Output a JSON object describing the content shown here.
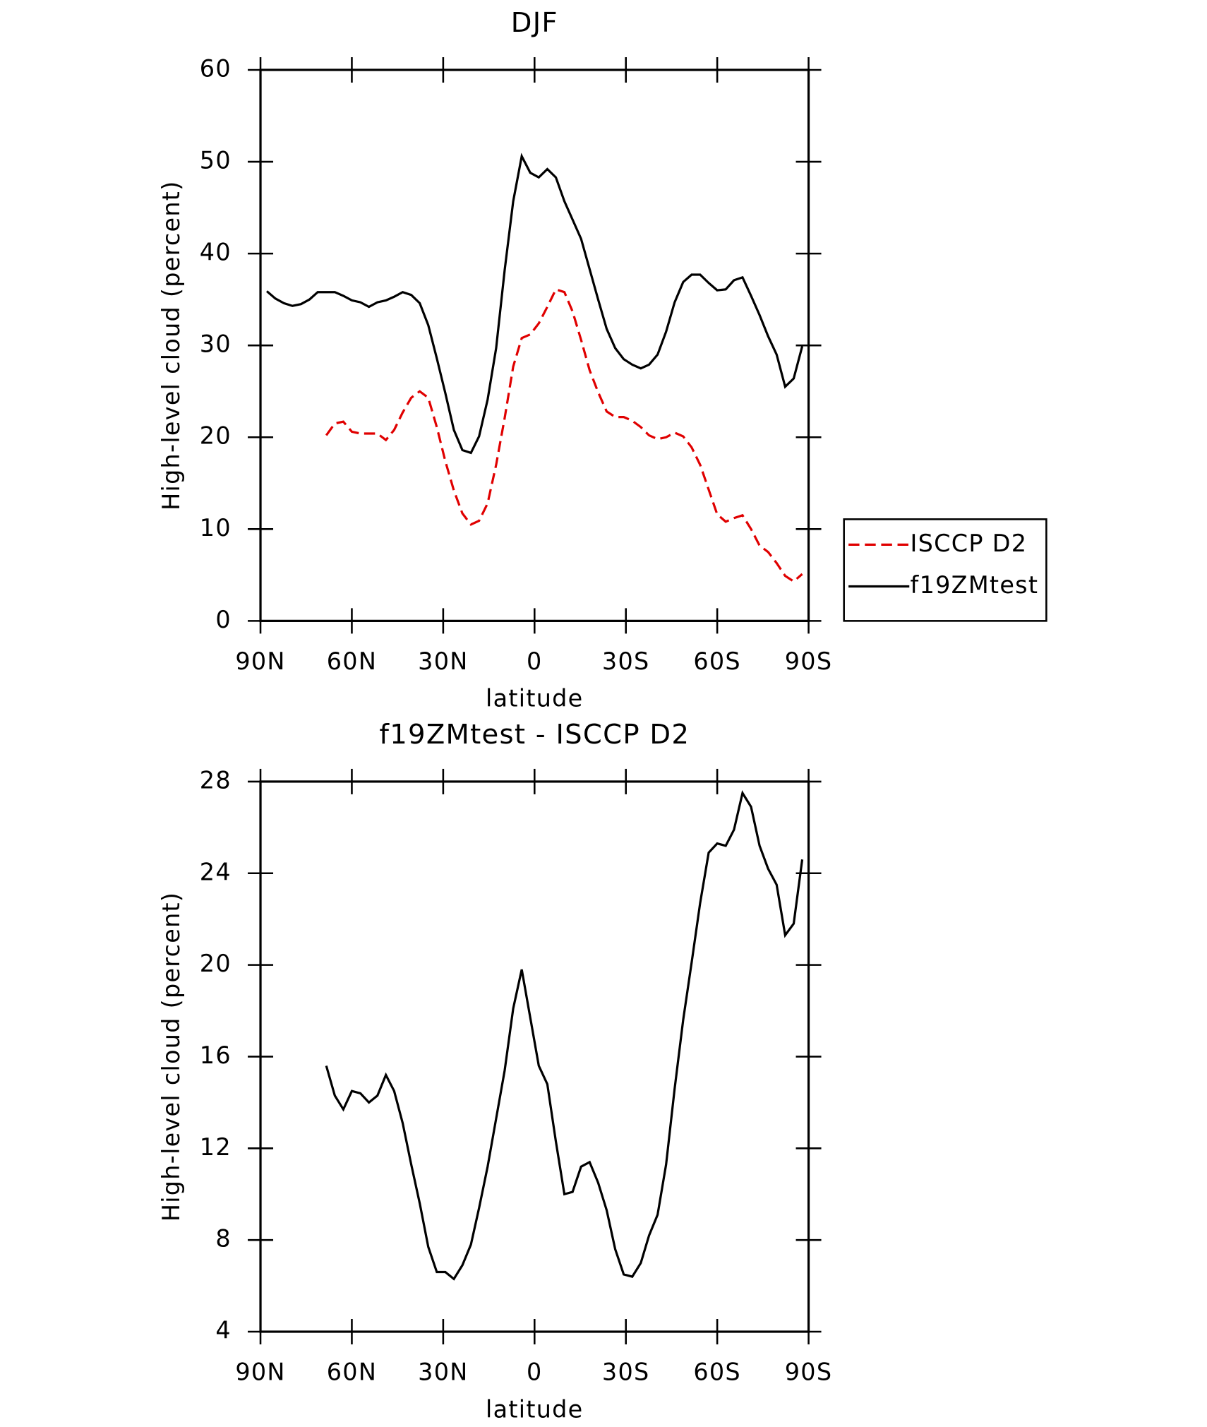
{
  "chart_data": [
    {
      "type": "line",
      "title": "DJF",
      "xlabel": "latitude",
      "ylabel": "High-level cloud (percent)",
      "x": [
        87.9,
        85.1,
        82.3,
        79.5,
        76.7,
        73.9,
        71.2,
        68.4,
        65.6,
        62.8,
        60.0,
        57.2,
        54.4,
        51.6,
        48.8,
        46.1,
        43.3,
        40.5,
        37.7,
        34.9,
        32.1,
        29.3,
        26.5,
        23.7,
        20.9,
        18.2,
        15.4,
        12.6,
        9.8,
        7.0,
        4.2,
        1.4,
        -1.4,
        -4.2,
        -7.0,
        -9.8,
        -12.5,
        -15.3,
        -18.1,
        -20.9,
        -23.7,
        -26.5,
        -29.3,
        -32.1,
        -34.9,
        -37.6,
        -40.4,
        -43.2,
        -46.0,
        -48.8,
        -51.6,
        -54.4,
        -57.2,
        -60.0,
        -62.8,
        -65.5,
        -68.3,
        -71.1,
        -73.9,
        -76.7,
        -79.5,
        -82.3,
        -85.1,
        -87.9
      ],
      "series": [
        {
          "name": "ISCCP D2",
          "color": "#e00000",
          "dash": true,
          "values": [
            null,
            null,
            null,
            null,
            null,
            null,
            null,
            20.2,
            21.5,
            21.7,
            20.6,
            20.4,
            20.4,
            20.4,
            19.7,
            20.8,
            22.7,
            24.3,
            25.0,
            24.3,
            21.1,
            17.4,
            14.2,
            11.7,
            10.5,
            10.9,
            12.8,
            17.0,
            22.1,
            27.7,
            30.8,
            31.2,
            32.4,
            34.2,
            36.1,
            35.8,
            33.7,
            30.6,
            27.3,
            24.9,
            22.8,
            22.2,
            22.2,
            21.8,
            21.1,
            20.2,
            19.8,
            20.0,
            20.5,
            20.1,
            18.9,
            17.0,
            14.3,
            11.6,
            10.8,
            11.2,
            11.5,
            10.0,
            8.2,
            7.5,
            6.3,
            4.9,
            4.3,
            5.1
          ]
        },
        {
          "name": "f19ZMtest",
          "color": "#000000",
          "dash": false,
          "values": [
            35.9,
            35.1,
            34.6,
            34.3,
            34.5,
            35.0,
            35.8,
            35.8,
            35.8,
            35.4,
            34.9,
            34.7,
            34.2,
            34.7,
            34.9,
            35.3,
            35.8,
            35.5,
            34.6,
            32.2,
            28.6,
            24.8,
            20.8,
            18.6,
            18.3,
            20.1,
            24.1,
            29.7,
            38.2,
            45.7,
            50.6,
            48.8,
            48.3,
            49.2,
            48.3,
            45.7,
            43.7,
            41.6,
            38.3,
            35.0,
            31.8,
            29.7,
            28.5,
            27.9,
            27.5,
            27.9,
            29.0,
            31.5,
            34.7,
            36.9,
            37.7,
            37.7,
            36.8,
            36.0,
            36.1,
            37.1,
            37.4,
            35.4,
            33.3,
            31.0,
            29.0,
            25.5,
            26.4,
            29.9
          ]
        }
      ],
      "xlim": [
        90,
        -90
      ],
      "xticks": [
        {
          "value": 90,
          "label": "90N"
        },
        {
          "value": 60,
          "label": "60N"
        },
        {
          "value": 30,
          "label": "30N"
        },
        0,
        {
          "value": -30,
          "label": "30S"
        },
        {
          "value": -60,
          "label": "60S"
        },
        {
          "value": -90,
          "label": "90S"
        }
      ],
      "ylim": [
        0,
        60
      ],
      "yticks": [
        0,
        10,
        20,
        30,
        40,
        50,
        60
      ],
      "legend": "right"
    },
    {
      "type": "line",
      "title": "f19ZMtest - ISCCP D2",
      "xlabel": "latitude",
      "ylabel": "High-level cloud (percent)",
      "x": [
        87.9,
        85.1,
        82.3,
        79.5,
        76.7,
        73.9,
        71.2,
        68.4,
        65.6,
        62.8,
        60.0,
        57.2,
        54.4,
        51.6,
        48.8,
        46.1,
        43.3,
        40.5,
        37.7,
        34.9,
        32.1,
        29.3,
        26.5,
        23.7,
        20.9,
        18.2,
        15.4,
        12.6,
        9.8,
        7.0,
        4.2,
        1.4,
        -1.4,
        -4.2,
        -7.0,
        -9.8,
        -12.5,
        -15.3,
        -18.1,
        -20.9,
        -23.7,
        -26.5,
        -29.3,
        -32.1,
        -34.9,
        -37.6,
        -40.4,
        -43.2,
        -46.0,
        -48.8,
        -51.6,
        -54.4,
        -57.2,
        -60.0,
        -62.8,
        -65.5,
        -68.3,
        -71.1,
        -73.9,
        -76.7,
        -79.5,
        -82.3,
        -85.1,
        -87.9
      ],
      "series": [
        {
          "color": "#000000",
          "dash": false,
          "values": [
            null,
            null,
            null,
            null,
            null,
            null,
            null,
            15.6,
            14.3,
            13.7,
            14.5,
            14.4,
            14.0,
            14.3,
            15.2,
            14.5,
            13.1,
            11.3,
            9.6,
            7.7,
            6.6,
            6.6,
            6.3,
            6.9,
            7.8,
            9.4,
            11.2,
            13.3,
            15.4,
            18.1,
            19.8,
            17.7,
            15.6,
            14.8,
            12.3,
            10.0,
            10.1,
            11.2,
            11.4,
            10.5,
            9.3,
            7.6,
            6.5,
            6.4,
            7.0,
            8.2,
            9.1,
            11.3,
            14.6,
            17.6,
            20.1,
            22.7,
            24.9,
            25.3,
            25.2,
            25.9,
            27.5,
            26.9,
            25.2,
            24.2,
            23.5,
            21.3,
            21.8,
            24.6
          ]
        }
      ],
      "xlim": [
        90,
        -90
      ],
      "xticks": [
        {
          "value": 90,
          "label": "90N"
        },
        {
          "value": 60,
          "label": "60N"
        },
        {
          "value": 30,
          "label": "30N"
        },
        0,
        {
          "value": -30,
          "label": "30S"
        },
        {
          "value": -60,
          "label": "60S"
        },
        {
          "value": -90,
          "label": "90S"
        }
      ],
      "ylim": [
        4,
        28
      ],
      "yticks": [
        4,
        8,
        12,
        16,
        20,
        24,
        28
      ]
    }
  ]
}
